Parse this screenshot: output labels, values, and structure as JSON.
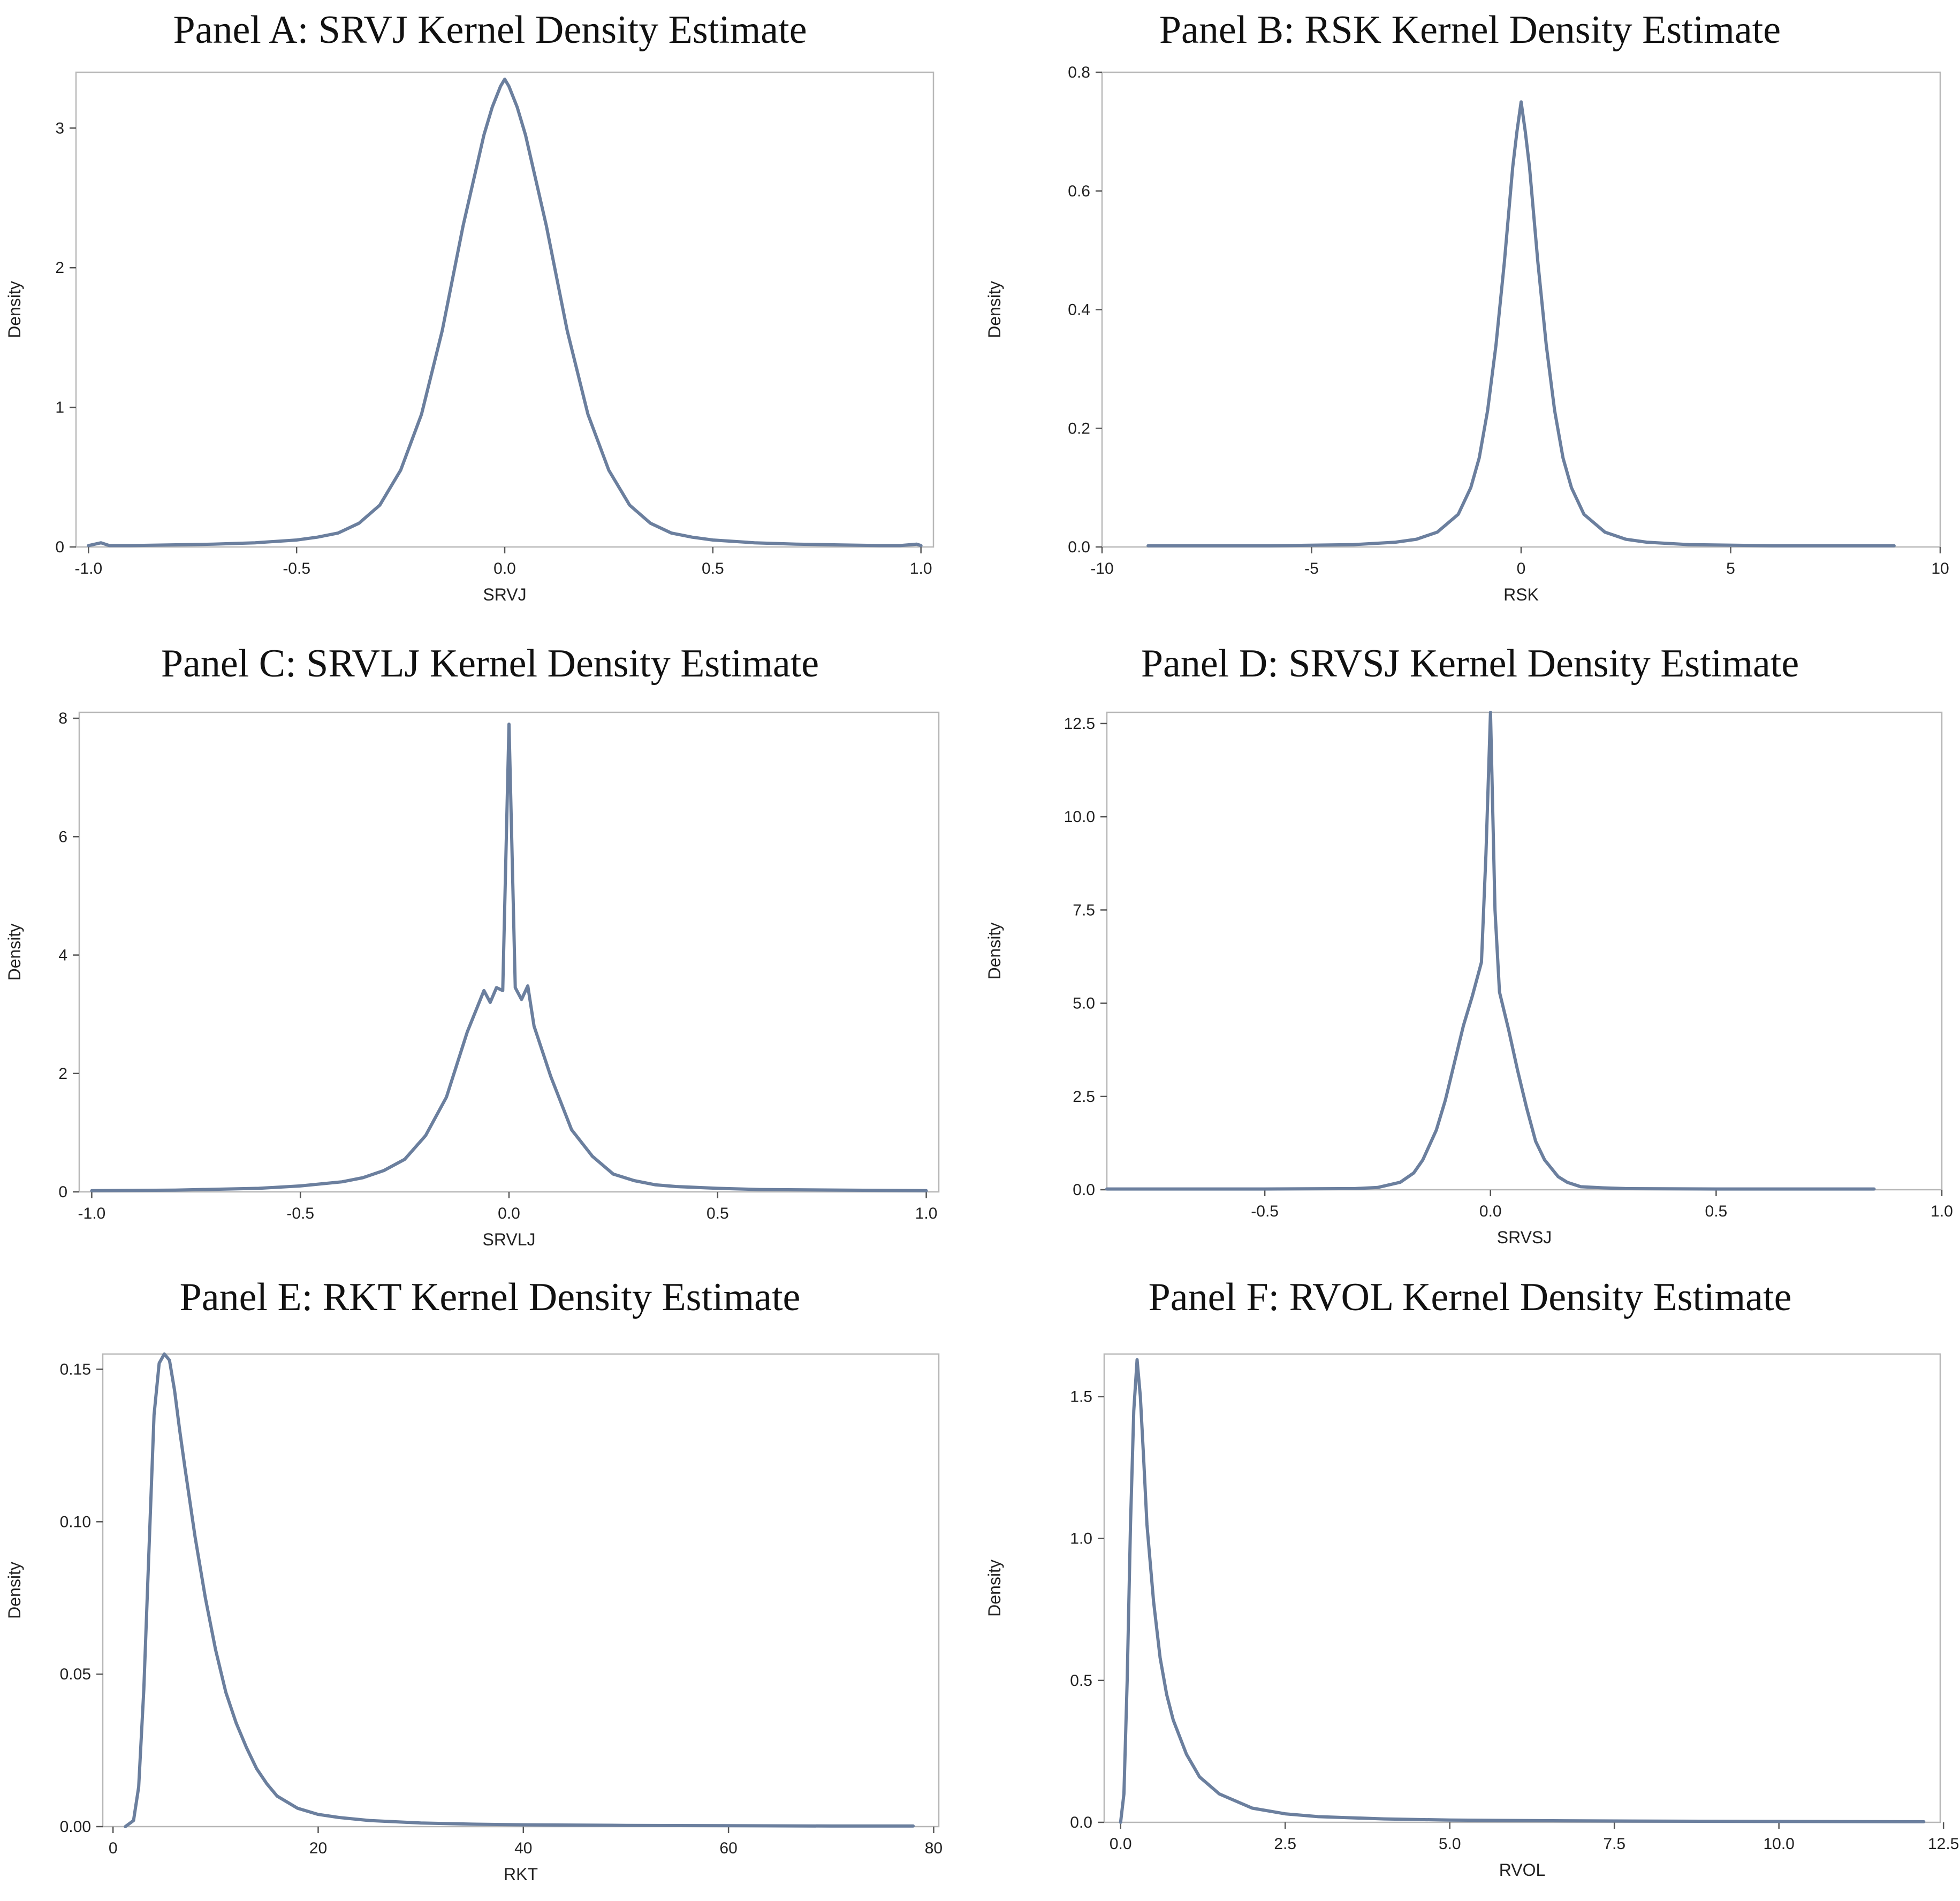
{
  "chart_data": [
    {
      "id": "A",
      "type": "line",
      "title": "Panel A: SRVJ Kernel Density Estimate",
      "xlabel": "SRVJ",
      "ylabel": "Density",
      "xlim": [
        -1.03,
        1.03
      ],
      "ylim": [
        0,
        3.4
      ],
      "xticks": [
        -1.0,
        -0.5,
        0.0,
        0.5,
        1.0
      ],
      "xtick_labels": [
        "-1.0",
        "-0.5",
        "0.0",
        "0.5",
        "1.0"
      ],
      "yticks": [
        0,
        1,
        2,
        3
      ],
      "ytick_labels": [
        "0",
        "1",
        "2",
        "3"
      ],
      "series": [
        {
          "name": "SRVJ density",
          "x": [
            -1.0,
            -0.97,
            -0.95,
            -0.9,
            -0.8,
            -0.7,
            -0.6,
            -0.5,
            -0.45,
            -0.4,
            -0.35,
            -0.3,
            -0.25,
            -0.2,
            -0.15,
            -0.1,
            -0.05,
            -0.03,
            -0.01,
            0.0,
            0.01,
            0.03,
            0.05,
            0.1,
            0.15,
            0.2,
            0.25,
            0.3,
            0.35,
            0.4,
            0.45,
            0.5,
            0.6,
            0.7,
            0.8,
            0.9,
            0.95,
            0.99,
            1.0
          ],
          "y": [
            0.01,
            0.03,
            0.01,
            0.01,
            0.015,
            0.02,
            0.03,
            0.05,
            0.07,
            0.1,
            0.17,
            0.3,
            0.55,
            0.95,
            1.55,
            2.3,
            2.95,
            3.15,
            3.3,
            3.35,
            3.3,
            3.15,
            2.95,
            2.3,
            1.55,
            0.95,
            0.55,
            0.3,
            0.17,
            0.1,
            0.07,
            0.05,
            0.03,
            0.02,
            0.015,
            0.01,
            0.01,
            0.02,
            0.01
          ]
        }
      ]
    },
    {
      "id": "B",
      "type": "line",
      "title": "Panel B: RSK Kernel Density Estimate",
      "xlabel": "RSK",
      "ylabel": "Density",
      "xlim": [
        -10,
        10
      ],
      "ylim": [
        0,
        0.8
      ],
      "xticks": [
        -10,
        -5,
        0,
        5,
        10
      ],
      "xtick_labels": [
        "-10",
        "-5",
        "0",
        "5",
        "10"
      ],
      "yticks": [
        0.0,
        0.2,
        0.4,
        0.6,
        0.8
      ],
      "ytick_labels": [
        "0.0",
        "0.2",
        "0.4",
        "0.6",
        "0.8"
      ],
      "series": [
        {
          "name": "RSK density",
          "x": [
            -8.9,
            -6,
            -4,
            -3,
            -2.5,
            -2,
            -1.5,
            -1.2,
            -1,
            -0.8,
            -0.6,
            -0.4,
            -0.2,
            -0.1,
            0,
            0.1,
            0.2,
            0.4,
            0.6,
            0.8,
            1,
            1.2,
            1.5,
            2,
            2.5,
            3,
            4,
            6,
            8.9
          ],
          "y": [
            0.002,
            0.002,
            0.004,
            0.008,
            0.013,
            0.025,
            0.055,
            0.1,
            0.15,
            0.23,
            0.34,
            0.48,
            0.64,
            0.7,
            0.75,
            0.7,
            0.64,
            0.48,
            0.34,
            0.23,
            0.15,
            0.1,
            0.055,
            0.025,
            0.013,
            0.008,
            0.004,
            0.002,
            0.002
          ]
        }
      ]
    },
    {
      "id": "C",
      "type": "line",
      "title": "Panel C: SRVLJ Kernel Density Estimate",
      "xlabel": "SRVLJ",
      "ylabel": "Density",
      "xlim": [
        -1.03,
        1.03
      ],
      "ylim": [
        0,
        8.1
      ],
      "xticks": [
        -1.0,
        -0.5,
        0.0,
        0.5,
        1.0
      ],
      "xtick_labels": [
        "-1.0",
        "-0.5",
        "0.0",
        "0.5",
        "1.0"
      ],
      "yticks": [
        0,
        2,
        4,
        6,
        8
      ],
      "ytick_labels": [
        "0",
        "2",
        "4",
        "6",
        "8"
      ],
      "series": [
        {
          "name": "SRVLJ density",
          "x": [
            -1.0,
            -0.8,
            -0.6,
            -0.5,
            -0.4,
            -0.35,
            -0.3,
            -0.25,
            -0.2,
            -0.15,
            -0.1,
            -0.06,
            -0.045,
            -0.03,
            -0.015,
            0.0,
            0.015,
            0.03,
            0.045,
            0.06,
            0.1,
            0.15,
            0.2,
            0.25,
            0.3,
            0.35,
            0.4,
            0.5,
            0.6,
            0.8,
            1.0
          ],
          "y": [
            0.02,
            0.03,
            0.06,
            0.1,
            0.17,
            0.24,
            0.36,
            0.55,
            0.95,
            1.6,
            2.7,
            3.4,
            3.2,
            3.45,
            3.4,
            7.9,
            3.45,
            3.25,
            3.48,
            2.8,
            1.95,
            1.05,
            0.6,
            0.3,
            0.19,
            0.12,
            0.09,
            0.06,
            0.04,
            0.03,
            0.02
          ]
        }
      ]
    },
    {
      "id": "D",
      "type": "line",
      "title": "Panel D: SRVSJ Kernel Density Estimate",
      "xlabel": "SRVSJ",
      "ylabel": "Density",
      "xlim": [
        -0.85,
        1.0
      ],
      "ylim": [
        0,
        12.8
      ],
      "xticks": [
        -0.5,
        0.0,
        0.5,
        1.0
      ],
      "xtick_labels": [
        "-0.5",
        "0.0",
        "0.5",
        "1.0"
      ],
      "yticks": [
        0.0,
        2.5,
        5.0,
        7.5,
        10.0,
        12.5
      ],
      "ytick_labels": [
        "0.0",
        "2.5",
        "5.0",
        "7.5",
        "10.0",
        "12.5"
      ],
      "series": [
        {
          "name": "SRVSJ density",
          "x": [
            -0.85,
            -0.5,
            -0.3,
            -0.25,
            -0.2,
            -0.17,
            -0.15,
            -0.12,
            -0.1,
            -0.08,
            -0.06,
            -0.04,
            -0.02,
            -0.01,
            0.0,
            0.01,
            0.02,
            0.04,
            0.06,
            0.08,
            0.1,
            0.12,
            0.15,
            0.17,
            0.2,
            0.25,
            0.3,
            0.5,
            0.85
          ],
          "y": [
            0.02,
            0.02,
            0.03,
            0.06,
            0.2,
            0.45,
            0.8,
            1.6,
            2.4,
            3.4,
            4.4,
            5.2,
            6.1,
            9.0,
            12.8,
            7.5,
            5.3,
            4.3,
            3.2,
            2.2,
            1.3,
            0.8,
            0.35,
            0.2,
            0.08,
            0.05,
            0.03,
            0.02,
            0.02
          ]
        }
      ]
    },
    {
      "id": "E",
      "type": "line",
      "title": "Panel E: RKT Kernel Density Estimate",
      "xlabel": "RKT",
      "ylabel": "Density",
      "xlim": [
        -1,
        80.5
      ],
      "ylim": [
        0,
        0.155
      ],
      "xticks": [
        0,
        20,
        40,
        60,
        80
      ],
      "xtick_labels": [
        "0",
        "20",
        "40",
        "60",
        "80"
      ],
      "yticks": [
        0.0,
        0.05,
        0.1,
        0.15
      ],
      "ytick_labels": [
        "0.00",
        "0.05",
        "0.10",
        "0.15"
      ],
      "series": [
        {
          "name": "RKT density",
          "x": [
            1.2,
            2,
            2.5,
            3,
            3.5,
            4,
            4.5,
            5,
            5.5,
            6,
            6.5,
            7,
            8,
            9,
            10,
            11,
            12,
            13,
            14,
            15,
            16,
            18,
            20,
            22,
            25,
            30,
            35,
            40,
            50,
            60,
            70,
            78
          ],
          "y": [
            0.0,
            0.002,
            0.013,
            0.045,
            0.09,
            0.135,
            0.152,
            0.155,
            0.153,
            0.143,
            0.13,
            0.118,
            0.095,
            0.075,
            0.058,
            0.044,
            0.034,
            0.026,
            0.019,
            0.014,
            0.01,
            0.006,
            0.004,
            0.003,
            0.002,
            0.0012,
            0.0008,
            0.0006,
            0.0004,
            0.0003,
            0.0002,
            0.0002
          ]
        }
      ]
    },
    {
      "id": "F",
      "type": "line",
      "title": "Panel F: RVOL Kernel Density Estimate",
      "xlabel": "RVOL",
      "ylabel": "Density",
      "xlim": [
        -0.25,
        12.45
      ],
      "ylim": [
        0,
        1.65
      ],
      "xticks": [
        0.0,
        2.5,
        5.0,
        7.5,
        10.0,
        12.5
      ],
      "xtick_labels": [
        "0.0",
        "2.5",
        "5.0",
        "7.5",
        "10.0",
        "12.5"
      ],
      "yticks": [
        0.0,
        0.5,
        1.0,
        1.5
      ],
      "ytick_labels": [
        "0.0",
        "0.5",
        "1.0",
        "1.5"
      ],
      "series": [
        {
          "name": "RVOL density",
          "x": [
            0.0,
            0.05,
            0.1,
            0.15,
            0.2,
            0.25,
            0.3,
            0.35,
            0.4,
            0.5,
            0.6,
            0.7,
            0.8,
            1.0,
            1.2,
            1.5,
            2.0,
            2.5,
            3.0,
            4.0,
            5.0,
            7.0,
            10.0,
            12.2
          ],
          "y": [
            0.0,
            0.1,
            0.5,
            1.05,
            1.45,
            1.63,
            1.5,
            1.28,
            1.05,
            0.78,
            0.58,
            0.45,
            0.36,
            0.24,
            0.16,
            0.1,
            0.05,
            0.03,
            0.02,
            0.012,
            0.008,
            0.005,
            0.003,
            0.002
          ]
        }
      ]
    }
  ]
}
